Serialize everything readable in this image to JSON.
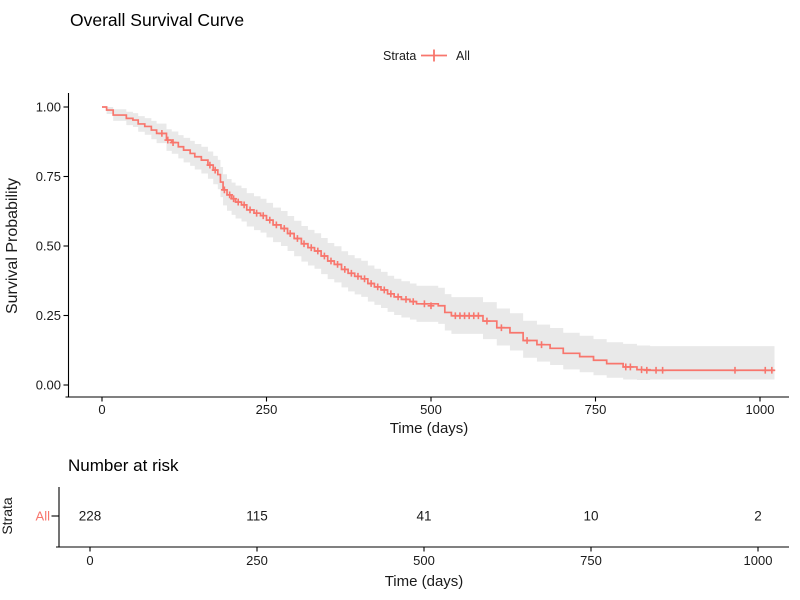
{
  "title": "Overall Survival Curve",
  "legend": {
    "title": "Strata",
    "items": [
      {
        "label": "All",
        "color": "#F8766D"
      }
    ]
  },
  "main_plot": {
    "y_axis": {
      "title": "Survival Probability",
      "ticks": [
        "1.00",
        "0.75",
        "0.50",
        "0.25",
        "0.00"
      ],
      "tick_values": [
        1.0,
        0.75,
        0.5,
        0.25,
        0.0
      ]
    },
    "x_axis": {
      "title": "Time (days)",
      "ticks": [
        "0",
        "250",
        "500",
        "750",
        "1000"
      ],
      "tick_values": [
        0,
        250,
        500,
        750,
        1000
      ]
    }
  },
  "risk_table": {
    "title": "Number at risk",
    "axis_label": "Strata",
    "rows": [
      {
        "label": "All",
        "color": "#F8766D",
        "values": [
          "228",
          "115",
          "41",
          "10",
          "2"
        ]
      }
    ],
    "x_axis": {
      "title": "Time (days)",
      "ticks": [
        "0",
        "250",
        "500",
        "750",
        "1000"
      ],
      "tick_values": [
        0,
        250,
        500,
        750,
        1000
      ]
    }
  },
  "colors": {
    "curve": "#F8766D",
    "confidence_band": "#E9E9E9",
    "axis_line": "#000000",
    "tick_text": "#1a1a1a",
    "title_text": "#000000"
  },
  "chart_data": {
    "type": "line",
    "subtype": "kaplan-meier-step",
    "title": "Overall Survival Curve",
    "xlabel": "Time (days)",
    "ylabel": "Survival Probability",
    "xlim": [
      0,
      1050
    ],
    "ylim": [
      0,
      1
    ],
    "grid": false,
    "legend_position": "top",
    "series": [
      {
        "name": "All",
        "color": "#F8766D",
        "steps": [
          [
            0,
            1.0,
            1.0,
            1.0
          ],
          [
            7,
            0.989,
            0.975,
            1.0
          ],
          [
            17,
            0.971,
            0.95,
            0.992
          ],
          [
            37,
            0.959,
            0.935,
            0.983
          ],
          [
            47,
            0.953,
            0.928,
            0.978
          ],
          [
            55,
            0.939,
            0.911,
            0.967
          ],
          [
            65,
            0.93,
            0.9,
            0.96
          ],
          [
            75,
            0.917,
            0.884,
            0.95
          ],
          [
            83,
            0.905,
            0.87,
            0.94
          ],
          [
            98,
            0.881,
            0.842,
            0.92
          ],
          [
            106,
            0.872,
            0.832,
            0.912
          ],
          [
            116,
            0.857,
            0.815,
            0.899
          ],
          [
            124,
            0.845,
            0.801,
            0.889
          ],
          [
            134,
            0.833,
            0.788,
            0.878
          ],
          [
            141,
            0.821,
            0.775,
            0.867
          ],
          [
            151,
            0.809,
            0.761,
            0.857
          ],
          [
            161,
            0.791,
            0.742,
            0.84
          ],
          [
            169,
            0.773,
            0.722,
            0.824
          ],
          [
            176,
            0.757,
            0.704,
            0.81
          ],
          [
            180,
            0.73,
            0.676,
            0.784
          ],
          [
            184,
            0.702,
            0.646,
            0.758
          ],
          [
            190,
            0.684,
            0.627,
            0.741
          ],
          [
            197,
            0.67,
            0.612,
            0.728
          ],
          [
            203,
            0.658,
            0.599,
            0.717
          ],
          [
            212,
            0.648,
            0.588,
            0.708
          ],
          [
            220,
            0.63,
            0.57,
            0.69
          ],
          [
            231,
            0.618,
            0.557,
            0.679
          ],
          [
            241,
            0.609,
            0.548,
            0.67
          ],
          [
            250,
            0.593,
            0.531,
            0.655
          ],
          [
            260,
            0.576,
            0.514,
            0.638
          ],
          [
            272,
            0.563,
            0.5,
            0.626
          ],
          [
            282,
            0.545,
            0.482,
            0.608
          ],
          [
            292,
            0.527,
            0.463,
            0.591
          ],
          [
            303,
            0.508,
            0.444,
            0.572
          ],
          [
            313,
            0.494,
            0.43,
            0.558
          ],
          [
            323,
            0.482,
            0.418,
            0.546
          ],
          [
            333,
            0.464,
            0.399,
            0.529
          ],
          [
            343,
            0.446,
            0.381,
            0.511
          ],
          [
            353,
            0.434,
            0.369,
            0.499
          ],
          [
            364,
            0.416,
            0.351,
            0.481
          ],
          [
            374,
            0.402,
            0.337,
            0.467
          ],
          [
            384,
            0.391,
            0.326,
            0.456
          ],
          [
            394,
            0.382,
            0.317,
            0.447
          ],
          [
            404,
            0.365,
            0.3,
            0.43
          ],
          [
            414,
            0.353,
            0.288,
            0.418
          ],
          [
            424,
            0.342,
            0.277,
            0.407
          ],
          [
            434,
            0.328,
            0.263,
            0.393
          ],
          [
            444,
            0.317,
            0.252,
            0.382
          ],
          [
            455,
            0.308,
            0.243,
            0.373
          ],
          [
            468,
            0.3,
            0.235,
            0.365
          ],
          [
            478,
            0.292,
            0.227,
            0.357
          ],
          [
            511,
            0.285,
            0.22,
            0.35
          ],
          [
            521,
            0.261,
            0.196,
            0.327
          ],
          [
            531,
            0.249,
            0.184,
            0.316
          ],
          [
            579,
            0.23,
            0.165,
            0.298
          ],
          [
            600,
            0.206,
            0.142,
            0.275
          ],
          [
            620,
            0.188,
            0.124,
            0.258
          ],
          [
            640,
            0.16,
            0.098,
            0.231
          ],
          [
            661,
            0.145,
            0.084,
            0.217
          ],
          [
            681,
            0.132,
            0.072,
            0.205
          ],
          [
            701,
            0.114,
            0.056,
            0.188
          ],
          [
            726,
            0.102,
            0.046,
            0.177
          ],
          [
            747,
            0.089,
            0.035,
            0.165
          ],
          [
            767,
            0.077,
            0.026,
            0.154
          ],
          [
            792,
            0.065,
            0.02,
            0.148
          ],
          [
            813,
            0.055,
            0.018,
            0.142
          ],
          [
            833,
            0.053,
            0.02,
            0.14
          ],
          [
            1022,
            0.053,
            0.02,
            0.14
          ]
        ],
        "censor_marks": [
          [
            91,
            0.905
          ],
          [
            100,
            0.881
          ],
          [
            108,
            0.872
          ],
          [
            164,
            0.791
          ],
          [
            172,
            0.773
          ],
          [
            186,
            0.702
          ],
          [
            194,
            0.684
          ],
          [
            200,
            0.67
          ],
          [
            207,
            0.658
          ],
          [
            216,
            0.648
          ],
          [
            225,
            0.63
          ],
          [
            235,
            0.618
          ],
          [
            245,
            0.609
          ],
          [
            255,
            0.593
          ],
          [
            265,
            0.576
          ],
          [
            277,
            0.563
          ],
          [
            286,
            0.545
          ],
          [
            297,
            0.527
          ],
          [
            307,
            0.508
          ],
          [
            318,
            0.494
          ],
          [
            328,
            0.482
          ],
          [
            338,
            0.464
          ],
          [
            348,
            0.446
          ],
          [
            358,
            0.434
          ],
          [
            369,
            0.416
          ],
          [
            379,
            0.402
          ],
          [
            389,
            0.391
          ],
          [
            399,
            0.382
          ],
          [
            409,
            0.365
          ],
          [
            419,
            0.353
          ],
          [
            429,
            0.342
          ],
          [
            439,
            0.328
          ],
          [
            450,
            0.317
          ],
          [
            462,
            0.308
          ],
          [
            473,
            0.3
          ],
          [
            490,
            0.292
          ],
          [
            500,
            0.285
          ],
          [
            537,
            0.249
          ],
          [
            544,
            0.249
          ],
          [
            551,
            0.249
          ],
          [
            558,
            0.249
          ],
          [
            565,
            0.249
          ],
          [
            572,
            0.249
          ],
          [
            585,
            0.23
          ],
          [
            607,
            0.206
          ],
          [
            646,
            0.16
          ],
          [
            668,
            0.145
          ],
          [
            796,
            0.065
          ],
          [
            803,
            0.065
          ],
          [
            820,
            0.055
          ],
          [
            828,
            0.053
          ],
          [
            842,
            0.053
          ],
          [
            852,
            0.053
          ],
          [
            962,
            0.053
          ],
          [
            1008,
            0.053
          ],
          [
            1018,
            0.053
          ]
        ]
      }
    ],
    "risk_counts": {
      "times": [
        0,
        250,
        500,
        750,
        1000
      ],
      "All": [
        228,
        115,
        41,
        10,
        2
      ]
    }
  }
}
